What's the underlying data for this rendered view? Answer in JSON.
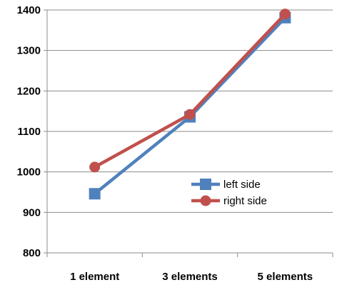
{
  "chart_data": {
    "type": "line",
    "categories": [
      "1 element",
      "3 elements",
      "5 elements"
    ],
    "series": [
      {
        "name": "left side",
        "values": [
          946,
          1136,
          1381
        ],
        "color": "#4F81BD",
        "marker": "square"
      },
      {
        "name": "right side",
        "values": [
          1012,
          1142,
          1390
        ],
        "color": "#C0504D",
        "marker": "circle"
      }
    ],
    "ylim": [
      800,
      1400
    ],
    "yticks": [
      800,
      900,
      1000,
      1100,
      1200,
      1300,
      1400
    ],
    "grid": true,
    "legend_placement": "inside-right",
    "title": "",
    "xlabel": "",
    "ylabel": ""
  }
}
